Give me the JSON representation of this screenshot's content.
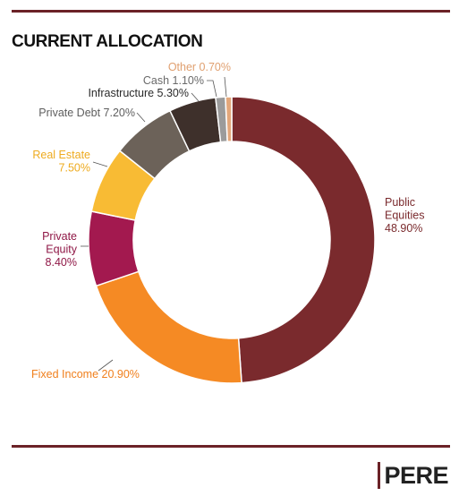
{
  "header": {
    "title": "CURRENT ALLOCATION"
  },
  "brand": {
    "name": "PERE",
    "bar_color": "#6b2227"
  },
  "chart_data": {
    "type": "pie",
    "donut": true,
    "title": "CURRENT ALLOCATION",
    "slices": [
      {
        "label": [
          "Public",
          "Equities",
          "48.90%"
        ],
        "value": 48.9,
        "color": "#7a2a2d",
        "label_color": "#7a2a2d"
      },
      {
        "label": [
          "Fixed Income 20.90%"
        ],
        "value": 20.9,
        "color": "#f58a24",
        "label_color": "#f07f1c"
      },
      {
        "label": [
          "Private",
          "Equity",
          "8.40%"
        ],
        "value": 8.4,
        "color": "#a3194f",
        "label_color": "#8f1746"
      },
      {
        "label": [
          "Real Estate",
          "7.50%"
        ],
        "value": 7.5,
        "color": "#f8bb34",
        "label_color": "#eeab1f"
      },
      {
        "label": [
          "Private Debt 7.20%"
        ],
        "value": 7.2,
        "color": "#6c6259",
        "label_color": "#5e5e5e"
      },
      {
        "label": [
          "Infrastructure 5.30%"
        ],
        "value": 5.3,
        "color": "#3e302b",
        "label_color": "#2b2b2b"
      },
      {
        "label": [
          "Cash 1.10%"
        ],
        "value": 1.1,
        "color": "#9b9b9b",
        "label_color": "#6a6a6a"
      },
      {
        "label": [
          "Other 0.70%"
        ],
        "value": 0.7,
        "color": "#e3a77b",
        "label_color": "#e0a070"
      }
    ]
  }
}
